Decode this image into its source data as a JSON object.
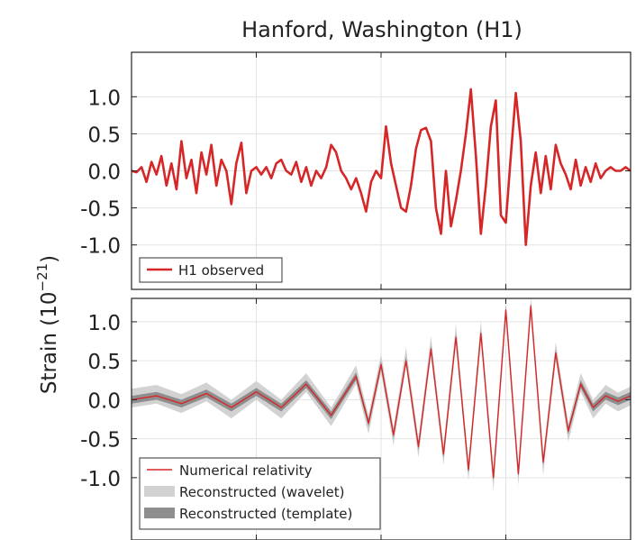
{
  "title": "Hanford, Washington (H1)",
  "ylabel_text": "Strain (10",
  "ylabel_exp": "−21",
  "ylabel_close": ")",
  "chart_data": [
    {
      "type": "line",
      "name": "top-panel",
      "ylim": [
        -1.6,
        1.6
      ],
      "yticks": [
        1.0,
        0.5,
        0.0,
        -0.5,
        -1.0
      ],
      "ytick_labels": [
        "1.0",
        "0.5",
        "0.0",
        "-0.5",
        "-1.0"
      ],
      "grid": true,
      "legend": {
        "placement": "lower-left",
        "entries": [
          "H1 observed"
        ]
      },
      "colors": {
        "observed": "#d62728"
      },
      "series": [
        {
          "name": "H1 observed",
          "x": [
            0.25,
            0.252,
            0.254,
            0.256,
            0.258,
            0.26,
            0.262,
            0.264,
            0.266,
            0.268,
            0.27,
            0.272,
            0.274,
            0.276,
            0.278,
            0.28,
            0.282,
            0.284,
            0.286,
            0.288,
            0.29,
            0.292,
            0.294,
            0.296,
            0.298,
            0.3,
            0.302,
            0.304,
            0.306,
            0.308,
            0.31,
            0.312,
            0.314,
            0.316,
            0.318,
            0.32,
            0.322,
            0.324,
            0.326,
            0.328,
            0.33,
            0.332,
            0.334,
            0.336,
            0.338,
            0.34,
            0.342,
            0.344,
            0.346,
            0.348,
            0.35,
            0.352,
            0.354,
            0.356,
            0.358,
            0.36,
            0.362,
            0.364,
            0.366,
            0.368,
            0.37,
            0.372,
            0.374,
            0.376,
            0.378,
            0.38,
            0.382,
            0.384,
            0.386,
            0.388,
            0.39,
            0.392,
            0.394,
            0.396,
            0.398,
            0.4,
            0.402,
            0.404,
            0.406,
            0.408,
            0.41,
            0.412,
            0.414,
            0.416,
            0.418,
            0.42,
            0.422,
            0.424,
            0.426,
            0.428,
            0.43,
            0.432,
            0.434,
            0.436,
            0.438,
            0.44,
            0.442,
            0.444,
            0.446,
            0.448,
            0.45
          ],
          "y": [
            0.0,
            -0.02,
            0.05,
            -0.15,
            0.12,
            -0.05,
            0.2,
            -0.2,
            0.1,
            -0.25,
            0.4,
            -0.1,
            0.15,
            -0.3,
            0.25,
            -0.05,
            0.35,
            -0.2,
            0.15,
            0.0,
            -0.45,
            0.1,
            0.38,
            -0.3,
            0.0,
            0.05,
            -0.05,
            0.05,
            -0.1,
            0.1,
            0.15,
            0.0,
            -0.05,
            0.12,
            -0.15,
            0.05,
            -0.2,
            0.0,
            -0.1,
            0.05,
            0.35,
            0.25,
            0.0,
            -0.1,
            -0.25,
            -0.1,
            -0.3,
            -0.55,
            -0.15,
            0.0,
            -0.1,
            0.6,
            0.1,
            -0.2,
            -0.5,
            -0.55,
            -0.2,
            0.3,
            0.55,
            0.58,
            0.4,
            -0.5,
            -0.85,
            0.0,
            -0.75,
            -0.4,
            0.0,
            0.5,
            1.1,
            0.2,
            -0.85,
            -0.2,
            0.6,
            0.95,
            -0.6,
            -0.7,
            0.2,
            1.05,
            0.4,
            -1.0,
            -0.2,
            0.25,
            -0.3,
            0.2,
            -0.25,
            0.35,
            0.1,
            -0.05,
            -0.25,
            0.15,
            -0.2,
            0.05,
            -0.15,
            0.1,
            -0.1,
            0.0,
            0.05,
            0.0,
            0.0,
            0.05,
            0.0
          ]
        }
      ]
    },
    {
      "type": "line",
      "name": "bottom-panel",
      "ylim": [
        -1.8,
        1.3
      ],
      "yticks": [
        1.0,
        0.5,
        0.0,
        -0.5,
        -1.0
      ],
      "ytick_labels": [
        "1.0",
        "0.5",
        "0.0",
        "-0.5",
        "-1.0"
      ],
      "grid": true,
      "legend": {
        "placement": "lower-left",
        "entries": [
          "Numerical relativity",
          "Reconstructed (wavelet)",
          "Reconstructed (template)"
        ]
      },
      "colors": {
        "nr": "#d62728",
        "wavelet": "#d2d2d2",
        "template": "#8e8e8e"
      },
      "series": [
        {
          "name": "Numerical relativity",
          "x": [
            0.25,
            0.26,
            0.27,
            0.28,
            0.29,
            0.3,
            0.31,
            0.32,
            0.33,
            0.34,
            0.345,
            0.35,
            0.355,
            0.36,
            0.365,
            0.37,
            0.375,
            0.38,
            0.385,
            0.39,
            0.395,
            0.4,
            0.405,
            0.41,
            0.415,
            0.42,
            0.425,
            0.43,
            0.435,
            0.44,
            0.445,
            0.45
          ],
          "y": [
            0.0,
            0.05,
            -0.05,
            0.08,
            -0.1,
            0.1,
            -0.1,
            0.2,
            -0.2,
            0.3,
            -0.3,
            0.45,
            -0.45,
            0.5,
            -0.6,
            0.65,
            -0.7,
            0.8,
            -0.9,
            0.85,
            -1.0,
            1.15,
            -0.95,
            1.2,
            -0.8,
            0.6,
            -0.4,
            0.2,
            -0.1,
            0.05,
            -0.02,
            0.05
          ]
        },
        {
          "name": "Reconstructed (wavelet)",
          "x": [
            0.25,
            0.26,
            0.27,
            0.28,
            0.29,
            0.3,
            0.31,
            0.32,
            0.33,
            0.34,
            0.345,
            0.35,
            0.355,
            0.36,
            0.365,
            0.37,
            0.375,
            0.38,
            0.385,
            0.39,
            0.395,
            0.4,
            0.405,
            0.41,
            0.415,
            0.42,
            0.425,
            0.43,
            0.435,
            0.44,
            0.445,
            0.45
          ],
          "y": [
            0.02,
            0.07,
            -0.05,
            0.1,
            -0.12,
            0.12,
            -0.12,
            0.22,
            -0.22,
            0.32,
            -0.32,
            0.47,
            -0.47,
            0.55,
            -0.62,
            0.7,
            -0.72,
            0.85,
            -0.92,
            0.9,
            -1.05,
            1.15,
            -0.98,
            1.2,
            -0.85,
            0.62,
            -0.42,
            0.22,
            -0.12,
            0.07,
            -0.03,
            0.05
          ],
          "band_halfwidth": 0.12
        },
        {
          "name": "Reconstructed (template)",
          "x": [
            0.25,
            0.26,
            0.27,
            0.28,
            0.29,
            0.3,
            0.31,
            0.32,
            0.33,
            0.34,
            0.345,
            0.35,
            0.355,
            0.36,
            0.365,
            0.37,
            0.375,
            0.38,
            0.385,
            0.39,
            0.395,
            0.4,
            0.405,
            0.41,
            0.415,
            0.42,
            0.425,
            0.43,
            0.435,
            0.44,
            0.445,
            0.45
          ],
          "y": [
            0.0,
            0.05,
            -0.05,
            0.08,
            -0.1,
            0.1,
            -0.1,
            0.2,
            -0.2,
            0.3,
            -0.3,
            0.45,
            -0.45,
            0.5,
            -0.6,
            0.65,
            -0.7,
            0.8,
            -0.9,
            0.85,
            -1.0,
            1.15,
            -0.95,
            1.2,
            -0.8,
            0.6,
            -0.4,
            0.2,
            -0.1,
            0.05,
            -0.02,
            0.05
          ],
          "band_halfwidth": 0.05
        }
      ]
    }
  ]
}
